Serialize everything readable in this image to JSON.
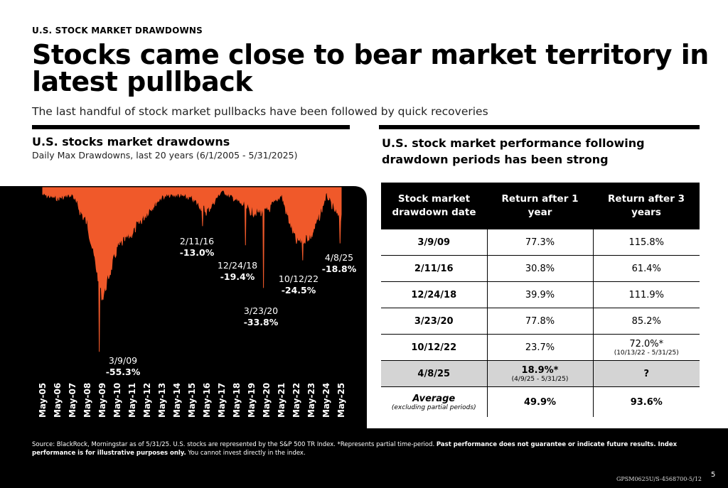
{
  "header": {
    "kicker": "U.S. STOCK MARKET DRAWDOWNS",
    "title": "Stocks came close to bear market territory in latest pullback",
    "subtitle": "The last handful of stock market pullbacks have been followed by quick recoveries"
  },
  "left_panel": {
    "heading": "U.S. stocks market drawdowns",
    "subheading": "Daily Max Drawdowns, last 20 years (6/1/2005 - 5/31/2025)"
  },
  "right_panel": {
    "heading": "U.S. stock market performance following drawdown periods has been strong"
  },
  "colors": {
    "line": "#f0592a",
    "panel": "#000000",
    "highlight": "#d4d4d4"
  },
  "chart_data": {
    "type": "area",
    "title": "",
    "xlabel": "",
    "ylabel": "",
    "ylim": [
      -60,
      0
    ],
    "grid": false,
    "x": [
      "May-05",
      "May-06",
      "May-07",
      "May-08",
      "May-09",
      "May-10",
      "May-11",
      "May-12",
      "May-13",
      "May-14",
      "May-15",
      "May-16",
      "May-17",
      "May-18",
      "May-19",
      "May-20",
      "May-21",
      "May-22",
      "May-23",
      "May-24",
      "May-25"
    ],
    "series": [
      {
        "values": [
          -1.5,
          -2.5,
          -1.5,
          -10,
          -35,
          -18,
          -13,
          -6,
          -2,
          -1.5,
          -2.5,
          -6,
          -0.5,
          -3,
          -6,
          -6,
          -1.5,
          -16,
          -14,
          -1.5,
          -9
        ]
      }
    ],
    "annotations": [
      {
        "date": "3/9/09",
        "value": "-55.3%"
      },
      {
        "date": "2/11/16",
        "value": "-13.0%"
      },
      {
        "date": "12/24/18",
        "value": "-19.4%"
      },
      {
        "date": "3/23/20",
        "value": "-33.8%"
      },
      {
        "date": "10/12/22",
        "value": "-24.5%"
      },
      {
        "date": "4/8/25",
        "value": "-18.8%"
      }
    ]
  },
  "table": {
    "headers": [
      "Stock market drawdown date",
      "Return after 1 year",
      "Return after 3 years"
    ],
    "rows": [
      {
        "date": "3/9/09",
        "r1": "77.3%",
        "r3": "115.8%"
      },
      {
        "date": "2/11/16",
        "r1": "30.8%",
        "r3": "61.4%"
      },
      {
        "date": "12/24/18",
        "r1": "39.9%",
        "r3": "111.9%"
      },
      {
        "date": "3/23/20",
        "r1": "77.8%",
        "r3": "85.2%"
      },
      {
        "date": "10/12/22",
        "r1": "23.7%",
        "r3": "72.0%*",
        "r3_note": "(10/13/22 - 5/31/25)"
      },
      {
        "date": "4/8/25",
        "r1": "18.9%*",
        "r1_note": "(4/9/25 - 5/31/25)",
        "r3": "?"
      }
    ],
    "average": {
      "label": "Average",
      "note": "(excluding partial periods)",
      "r1": "49.9%",
      "r3": "93.6%"
    }
  },
  "footer": {
    "source": "Source: BlackRock, Morningstar as of 5/31/25. U.S. stocks are represented by the S&P 500 TR Index. *Represents partial time-period.",
    "disclaimer": "Past performance does not guarantee or indicate future results. Index performance is for illustrative purposes only.",
    "disclaimer_tail": "You cannot invest directly in the index.",
    "code": "GPSM0625U/S-4568700-5/12",
    "page": "5"
  }
}
